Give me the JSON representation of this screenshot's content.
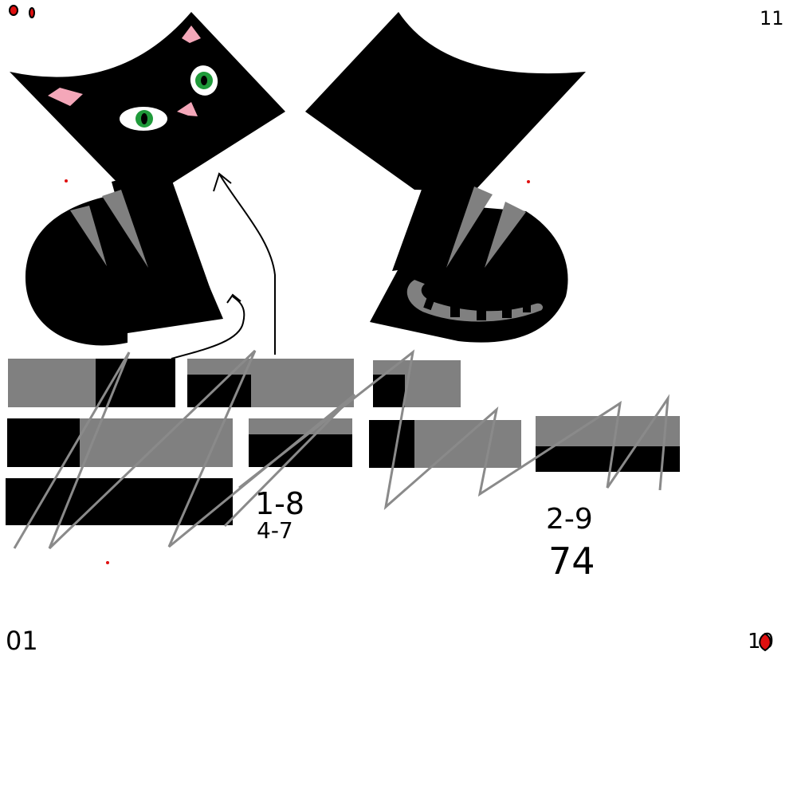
{
  "colors": {
    "background": "#ffffff",
    "cat_fill": "#000000",
    "stripe_gray": "#808080",
    "eye_white": "#ffffff",
    "eye_green": "#1f9a3a",
    "pupil": "#000000",
    "ear_pink": "#f4a7b9",
    "nose_pink": "#f4a7b9",
    "marker_red": "#e01010",
    "ink": "#000000"
  },
  "corner_marks": {
    "top_right": "11",
    "bottom_left": "01",
    "bottom_right": "10"
  },
  "notes": {
    "left_line_1": "1-8",
    "left_line_2": "4-7",
    "right_line_1": "2-9",
    "right_line_2": "74"
  },
  "icons": {
    "left_figure": "black-cat-icon",
    "right_figure": "black-cat-back-icon",
    "top_left_marker": "red-dots-icon",
    "bottom_right_marker": "red-drop-icon"
  }
}
